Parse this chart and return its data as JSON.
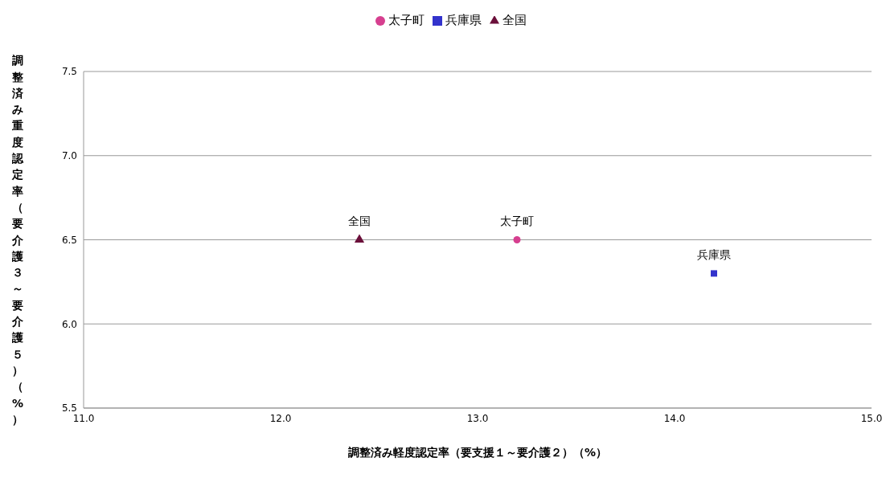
{
  "chart_data": {
    "type": "scatter",
    "xlabel": "調整済み軽度認定率（要支援１～要介護２）（%）",
    "ylabel": "調整済み重度認定率（要介護３～要介護５）（%）",
    "series": [
      {
        "name": "太子町",
        "color": "#d63f8f",
        "marker": "circle",
        "x": [
          13.2
        ],
        "values": [
          6.5
        ]
      },
      {
        "name": "兵庫県",
        "color": "#3333cc",
        "marker": "square",
        "x": [
          14.2
        ],
        "values": [
          6.3
        ]
      },
      {
        "name": "全国",
        "color": "#6b0f3a",
        "marker": "triangle",
        "x": [
          12.4
        ],
        "values": [
          6.5
        ]
      }
    ],
    "xlim": [
      11.0,
      15.0
    ],
    "xticks": [
      {
        "value": 11,
        "label": "11.0"
      },
      {
        "value": 12,
        "label": "12.0"
      },
      {
        "value": 13,
        "label": "13.0"
      },
      {
        "value": 14,
        "label": "14.0"
      },
      {
        "value": 15,
        "label": "15.0"
      }
    ],
    "ylim": [
      5.5,
      7.5
    ],
    "yticks": [
      5.5,
      {
        "value": 6,
        "label": "6.0"
      },
      6.5,
      {
        "value": 7,
        "label": "7.0"
      },
      7.5
    ],
    "grid": "y",
    "legend": "top"
  }
}
